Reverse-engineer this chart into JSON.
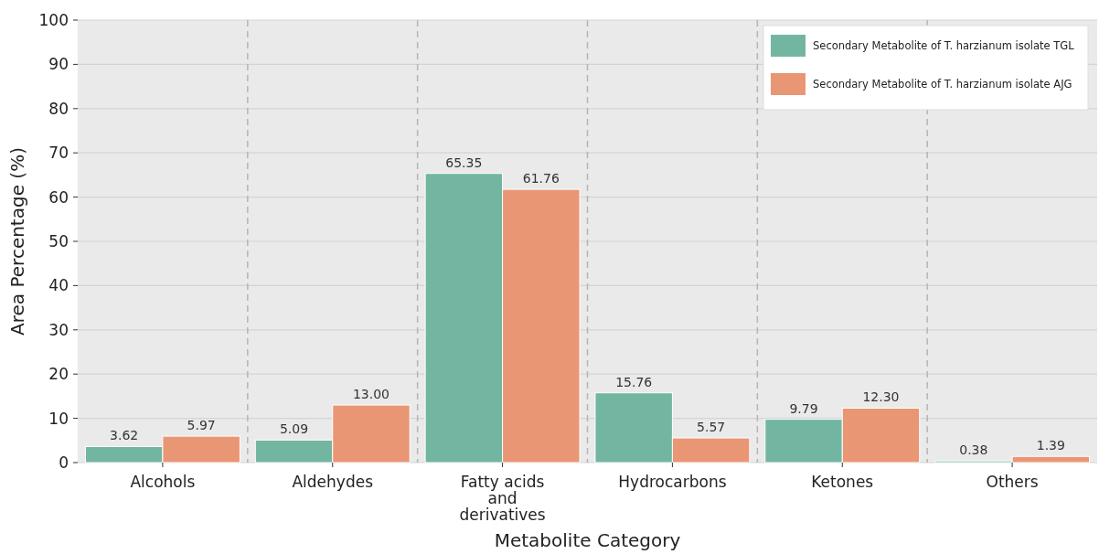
{
  "chart_data": {
    "type": "bar",
    "xlabel": "Metabolite Category",
    "ylabel": "Area Percentage (%)",
    "categories": [
      "Alcohols",
      "Aldehydes",
      "Fatty acids and derivatives",
      "Hydrocarbons",
      "Ketones",
      "Others"
    ],
    "series": [
      {
        "name": "Secondary Metabolite of T. harzianum isolate TGL",
        "color": "#72b6a1",
        "values": [
          3.62,
          5.09,
          65.35,
          15.76,
          9.79,
          0.38
        ],
        "value_labels": [
          "3.62",
          "5.09",
          "65.35",
          "15.76",
          "9.79",
          "0.38"
        ]
      },
      {
        "name": "Secondary Metabolite of T. harzianum isolate AJG",
        "color": "#e99675",
        "values": [
          5.97,
          13.0,
          61.76,
          5.57,
          12.3,
          1.39
        ],
        "value_labels": [
          "5.97",
          "13.00",
          "61.76",
          "5.57",
          "12.30",
          "1.39"
        ]
      }
    ],
    "ylim": [
      0,
      100
    ],
    "yticks": [
      0,
      10,
      20,
      30,
      40,
      50,
      60,
      70,
      80,
      90,
      100
    ],
    "grid": true,
    "legend": "top right"
  }
}
